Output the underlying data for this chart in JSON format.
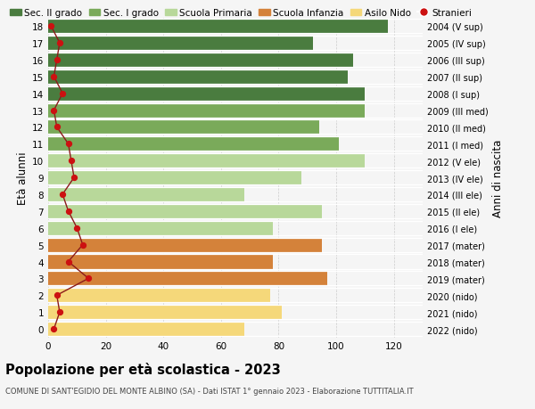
{
  "ages": [
    18,
    17,
    16,
    15,
    14,
    13,
    12,
    11,
    10,
    9,
    8,
    7,
    6,
    5,
    4,
    3,
    2,
    1,
    0
  ],
  "right_labels": [
    "2004 (V sup)",
    "2005 (IV sup)",
    "2006 (III sup)",
    "2007 (II sup)",
    "2008 (I sup)",
    "2009 (III med)",
    "2010 (II med)",
    "2011 (I med)",
    "2012 (V ele)",
    "2013 (IV ele)",
    "2014 (III ele)",
    "2015 (II ele)",
    "2016 (I ele)",
    "2017 (mater)",
    "2018 (mater)",
    "2019 (mater)",
    "2020 (nido)",
    "2021 (nido)",
    "2022 (nido)"
  ],
  "bar_values": [
    118,
    92,
    106,
    104,
    110,
    110,
    94,
    101,
    110,
    88,
    68,
    95,
    78,
    95,
    78,
    97,
    77,
    81,
    68
  ],
  "bar_colors": [
    "#4a7c3f",
    "#4a7c3f",
    "#4a7c3f",
    "#4a7c3f",
    "#4a7c3f",
    "#7aaa5a",
    "#7aaa5a",
    "#7aaa5a",
    "#b8d89a",
    "#b8d89a",
    "#b8d89a",
    "#b8d89a",
    "#b8d89a",
    "#d4823a",
    "#d4823a",
    "#d4823a",
    "#f5d87a",
    "#f5d87a",
    "#f5d87a"
  ],
  "stranieri_values": [
    1,
    4,
    3,
    2,
    5,
    2,
    3,
    7,
    8,
    9,
    5,
    7,
    10,
    12,
    7,
    14,
    3,
    4,
    2
  ],
  "title": "Popolazione per età scolastica - 2023",
  "subtitle": "COMUNE DI SANT'EGIDIO DEL MONTE ALBINO (SA) - Dati ISTAT 1° gennaio 2023 - Elaborazione TUTTITALIA.IT",
  "ylabel": "Età alunni",
  "right_ylabel": "Anni di nascita",
  "xlim": [
    0,
    130
  ],
  "xticks": [
    0,
    20,
    40,
    60,
    80,
    100,
    120
  ],
  "legend_labels": [
    "Sec. II grado",
    "Sec. I grado",
    "Scuola Primaria",
    "Scuola Infanzia",
    "Asilo Nido",
    "Stranieri"
  ],
  "legend_colors": [
    "#4a7c3f",
    "#7aaa5a",
    "#b8d89a",
    "#d4823a",
    "#f5d87a",
    "#cc1111"
  ],
  "bg_color": "#f5f5f5",
  "stranieri_line_color": "#8b1a1a",
  "stranieri_dot_color": "#cc1111"
}
